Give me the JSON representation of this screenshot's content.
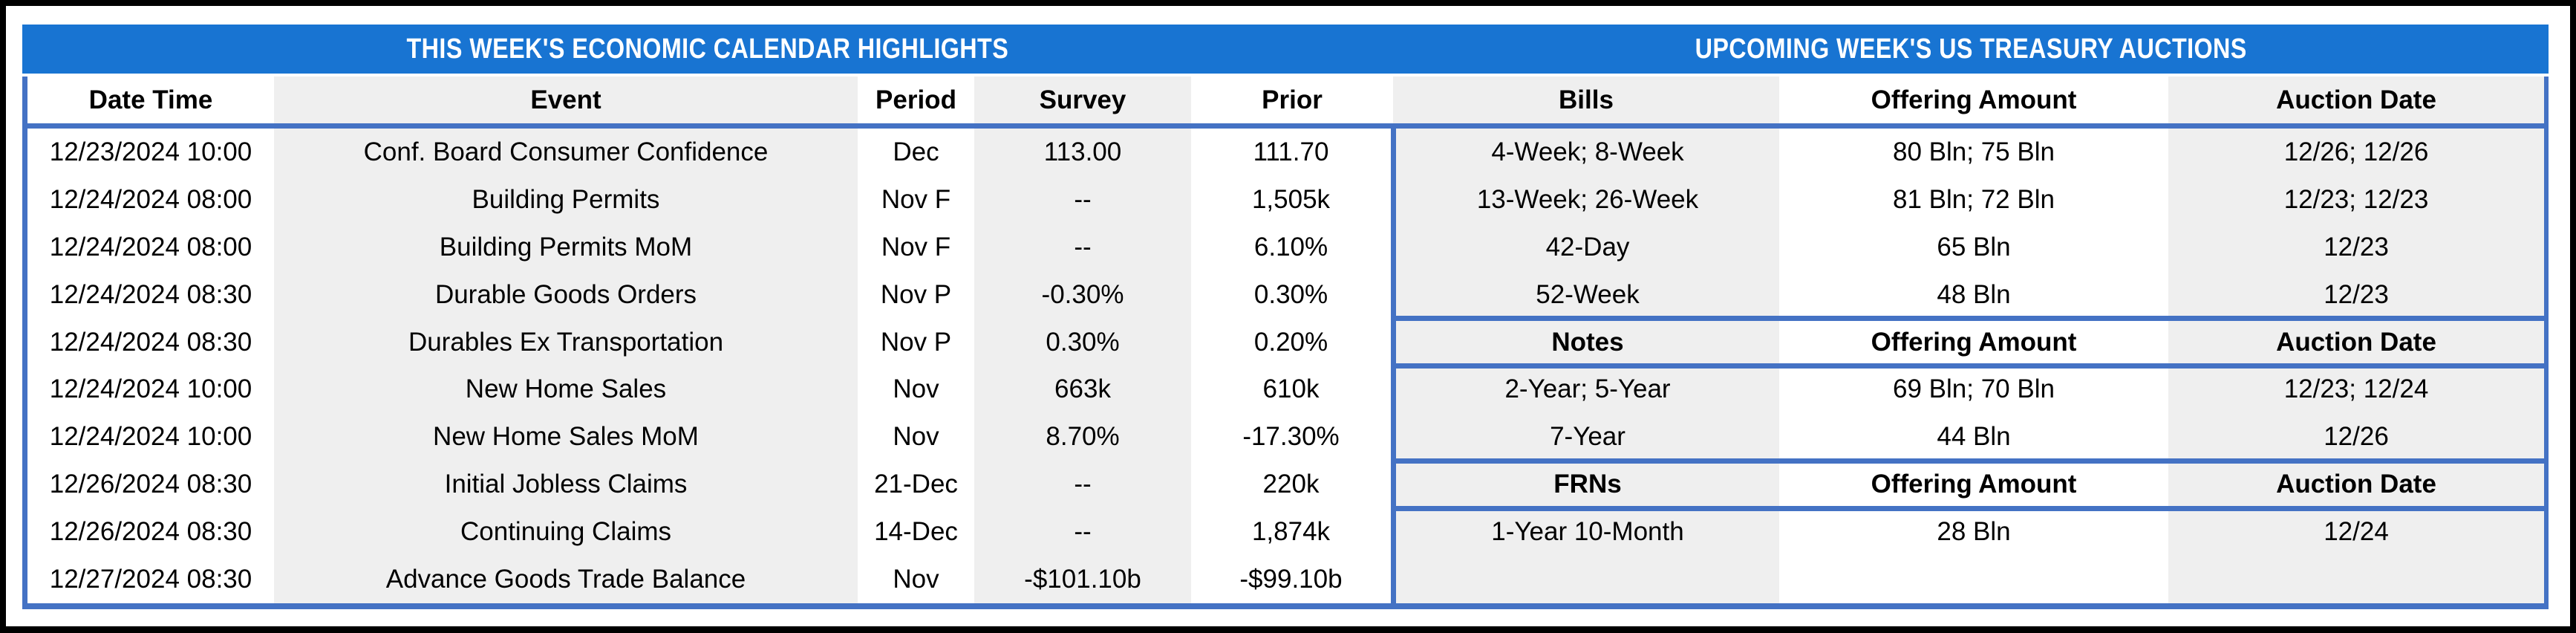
{
  "colors": {
    "title_bar_blue": "#1874D2",
    "table_border_blue": "#4472C4",
    "stripe_gray": "#EFEFEF",
    "frame_black": "#000000",
    "title_text_white": "#FFFFFF",
    "body_text_black": "#000000"
  },
  "left_table": {
    "title": "THIS WEEK'S ECONOMIC CALENDAR HIGHLIGHTS",
    "columns": [
      "Date Time",
      "Event",
      "Period",
      "Survey",
      "Prior"
    ],
    "rows": [
      {
        "date_time": "12/23/2024 10:00",
        "event": "Conf. Board Consumer Confidence",
        "period": "Dec",
        "survey": "113.00",
        "prior": "111.70"
      },
      {
        "date_time": "12/24/2024 08:00",
        "event": "Building Permits",
        "period": "Nov F",
        "survey": "--",
        "prior": "1,505k"
      },
      {
        "date_time": "12/24/2024 08:00",
        "event": "Building Permits MoM",
        "period": "Nov F",
        "survey": "--",
        "prior": "6.10%"
      },
      {
        "date_time": "12/24/2024 08:30",
        "event": "Durable Goods Orders",
        "period": "Nov P",
        "survey": "-0.30%",
        "prior": "0.30%"
      },
      {
        "date_time": "12/24/2024 08:30",
        "event": "Durables Ex Transportation",
        "period": "Nov P",
        "survey": "0.30%",
        "prior": "0.20%"
      },
      {
        "date_time": "12/24/2024 10:00",
        "event": "New Home Sales",
        "period": "Nov",
        "survey": "663k",
        "prior": "610k"
      },
      {
        "date_time": "12/24/2024 10:00",
        "event": "New Home Sales MoM",
        "period": "Nov",
        "survey": "8.70%",
        "prior": "-17.30%"
      },
      {
        "date_time": "12/26/2024 08:30",
        "event": "Initial Jobless Claims",
        "period": "21-Dec",
        "survey": "--",
        "prior": "220k"
      },
      {
        "date_time": "12/26/2024 08:30",
        "event": "Continuing Claims",
        "period": "14-Dec",
        "survey": "--",
        "prior": "1,874k"
      },
      {
        "date_time": "12/27/2024 08:30",
        "event": "Advance Goods Trade Balance",
        "period": "Nov",
        "survey": "-$101.10b",
        "prior": "-$99.10b"
      }
    ]
  },
  "right_table": {
    "title": "UPCOMING WEEK'S US TREASURY AUCTIONS",
    "sections": [
      {
        "header": {
          "security": "Bills",
          "amount": "Offering Amount",
          "date": "Auction Date"
        },
        "rows": [
          {
            "security": "4-Week; 8-Week",
            "amount": "80 Bln; 75 Bln",
            "date": "12/26; 12/26"
          },
          {
            "security": "13-Week; 26-Week",
            "amount": "81 Bln; 72 Bln",
            "date": "12/23; 12/23"
          },
          {
            "security": "42-Day",
            "amount": "65 Bln",
            "date": "12/23"
          },
          {
            "security": "52-Week",
            "amount": "48 Bln",
            "date": "12/23"
          }
        ]
      },
      {
        "header": {
          "security": "Notes",
          "amount": "Offering Amount",
          "date": "Auction Date"
        },
        "rows": [
          {
            "security": "2-Year; 5-Year",
            "amount": "69 Bln; 70 Bln",
            "date": "12/23; 12/24"
          },
          {
            "security": "7-Year",
            "amount": "44 Bln",
            "date": "12/26"
          }
        ]
      },
      {
        "header": {
          "security": "FRNs",
          "amount": "Offering Amount",
          "date": "Auction Date"
        },
        "rows": [
          {
            "security": "1-Year 10-Month",
            "amount": "28 Bln",
            "date": "12/24"
          }
        ]
      }
    ]
  }
}
